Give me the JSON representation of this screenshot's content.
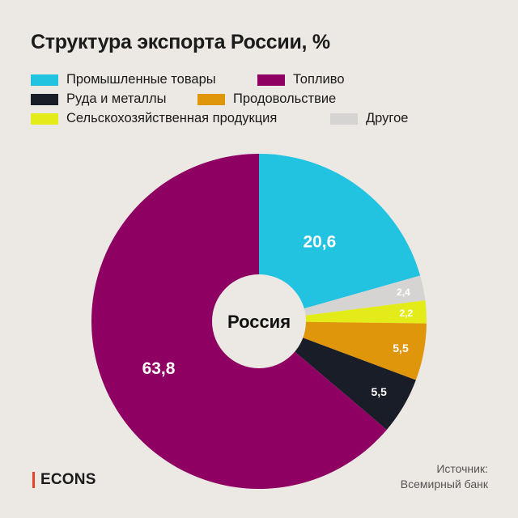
{
  "chart_data": {
    "type": "pie",
    "title": "Структура экспорта России, %",
    "center_label": "Россия",
    "slices": [
      {
        "label": "Промышленные товары",
        "value": 20.6,
        "value_label": "20,6",
        "color": "#22c3e1"
      },
      {
        "label": "Другое",
        "value": 2.4,
        "value_label": "2,4",
        "color": "#d6d4d2"
      },
      {
        "label": "Сельскохозяйственная продукция",
        "value": 2.2,
        "value_label": "2,2",
        "color": "#e3ec19"
      },
      {
        "label": "Продовольствие",
        "value": 5.5,
        "value_label": "5,5",
        "color": "#e0960b"
      },
      {
        "label": "Руда и металлы",
        "value": 5.5,
        "value_label": "5,5",
        "color": "#191d27"
      },
      {
        "label": "Топливо",
        "value": 63.8,
        "value_label": "63,8",
        "color": "#8e0062"
      }
    ],
    "legend": [
      "Промышленные товары",
      "Топливо",
      "Руда и металлы",
      "Продовольствие",
      "Сельскохозяйственная продукция",
      "Другое"
    ],
    "legend_placement": "top"
  },
  "brand": {
    "logo_text": "ECONS",
    "accent_color": "#e8402a"
  },
  "source": {
    "line1": "Источник:",
    "line2": "Всемирный банк"
  }
}
